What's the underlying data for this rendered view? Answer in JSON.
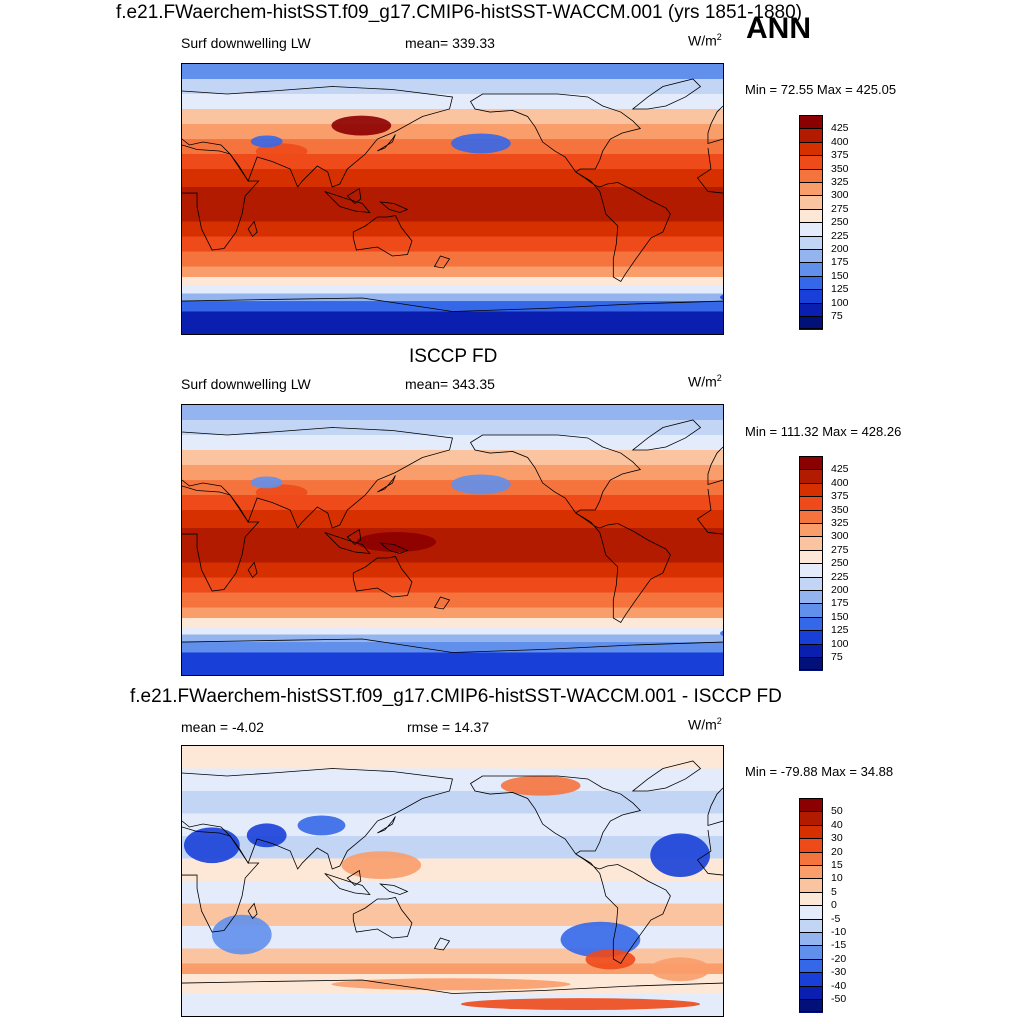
{
  "header": {
    "title": "f.e21.FWaerchem-histSST.f09_g17.CMIP6-histSST-WACCM.001 (yrs 1851-1880)",
    "season": "ANN"
  },
  "panels": [
    {
      "id": "model",
      "title": "",
      "left_label": "Surf downwelling LW",
      "center_label": "mean= 339.33",
      "units_base": "W/m",
      "units_exp": "2",
      "minmax": "Min =  72.55 Max = 425.05",
      "colorbar_levels": [
        "425",
        "400",
        "375",
        "350",
        "325",
        "300",
        "275",
        "250",
        "225",
        "200",
        "175",
        "150",
        "125",
        "100",
        "75"
      ],
      "colorbar_colors": [
        "#8b0000",
        "#b31b00",
        "#d73000",
        "#ee4a1a",
        "#f5743e",
        "#f99d6b",
        "#fbc4a0",
        "#fde8d8",
        "#e4ecfb",
        "#c2d5f5",
        "#93b4ee",
        "#6190ec",
        "#3568e8",
        "#1840d8",
        "#0a1fb0",
        "#02107a"
      ]
    },
    {
      "id": "obs",
      "title": "ISCCP FD",
      "left_label": "Surf downwelling LW",
      "center_label": "mean= 343.35",
      "units_base": "W/m",
      "units_exp": "2",
      "minmax": "Min = 111.32 Max = 428.26",
      "colorbar_levels": [
        "425",
        "400",
        "375",
        "350",
        "325",
        "300",
        "275",
        "250",
        "225",
        "200",
        "175",
        "150",
        "125",
        "100",
        "75"
      ],
      "colorbar_colors": [
        "#8b0000",
        "#b31b00",
        "#d73000",
        "#ee4a1a",
        "#f5743e",
        "#f99d6b",
        "#fbc4a0",
        "#fde8d8",
        "#e4ecfb",
        "#c2d5f5",
        "#93b4ee",
        "#6190ec",
        "#3568e8",
        "#1840d8",
        "#0a1fb0",
        "#02107a"
      ]
    },
    {
      "id": "diff",
      "title": "f.e21.FWaerchem-histSST.f09_g17.CMIP6-histSST-WACCM.001 - ISCCP FD",
      "left_label": "mean =  -4.02",
      "center_label": "rmse =  14.37",
      "units_base": "W/m",
      "units_exp": "2",
      "minmax": "Min = -79.88 Max =  34.88",
      "colorbar_levels": [
        "50",
        "40",
        "30",
        "20",
        "15",
        "10",
        "5",
        "0",
        "-5",
        "-10",
        "-15",
        "-20",
        "-30",
        "-40",
        "-50"
      ],
      "colorbar_colors": [
        "#8b0000",
        "#b31b00",
        "#d73000",
        "#ee4a1a",
        "#f5743e",
        "#f99d6b",
        "#fbc4a0",
        "#fde8d8",
        "#e4ecfb",
        "#c2d5f5",
        "#93b4ee",
        "#6190ec",
        "#3568e8",
        "#1840d8",
        "#0a1fb0",
        "#02107a"
      ]
    }
  ]
}
